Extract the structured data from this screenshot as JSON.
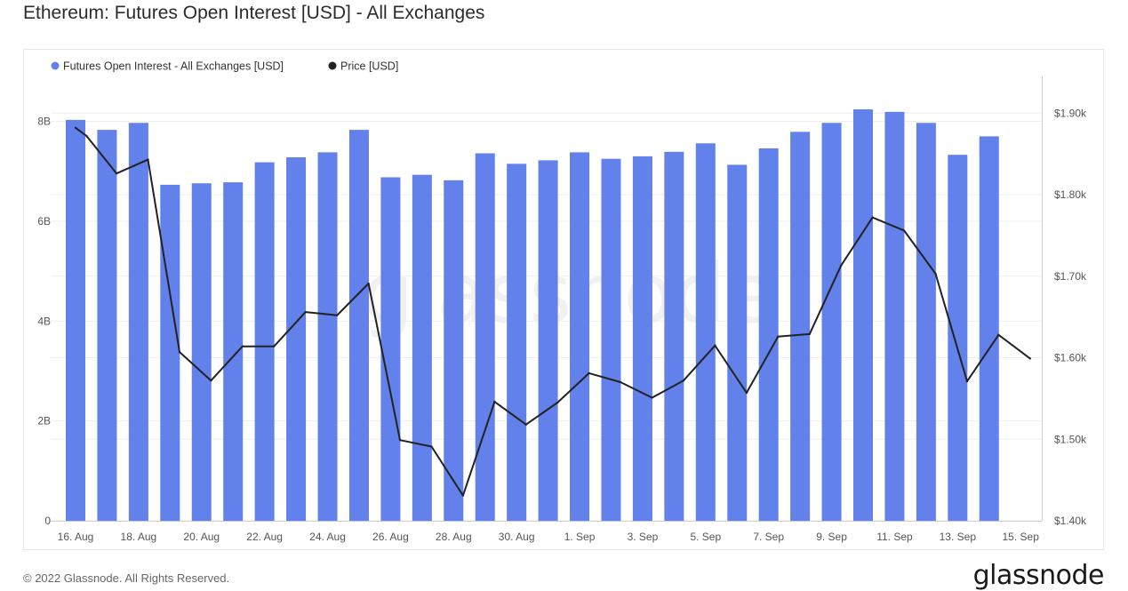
{
  "title": "Ethereum: Futures Open Interest [USD] - All Exchanges",
  "footer": {
    "copyright": "© 2022 Glassnode. All Rights Reserved.",
    "logo": "glassnode"
  },
  "watermark": "glassnode",
  "colors": {
    "bars": "#6381ea",
    "price_line": "#222222",
    "grid": "#efefef"
  },
  "chart_data": {
    "type": "bar",
    "series": [
      {
        "name": "Futures Open Interest - All Exchanges [USD]",
        "type": "bar",
        "axis": "left",
        "color": "#6381ea",
        "values": [
          8.03,
          7.83,
          7.97,
          6.73,
          6.76,
          6.78,
          7.18,
          7.28,
          7.38,
          7.83,
          6.88,
          6.93,
          6.82,
          7.36,
          7.15,
          7.22,
          7.38,
          7.25,
          7.3,
          7.39,
          7.56,
          7.13,
          7.46,
          7.79,
          7.97,
          8.24,
          8.19,
          7.97,
          7.33,
          7.7
        ]
      },
      {
        "name": "Price [USD]",
        "type": "line",
        "axis": "right",
        "color": "#222222",
        "values": [
          1882,
          1872,
          1826,
          1843,
          1607,
          1572,
          1614,
          1614,
          1656,
          1652,
          1691,
          1499,
          1491,
          1431,
          1546,
          1518,
          1545,
          1581,
          1570,
          1551,
          1572,
          1615,
          1557,
          1626,
          1629,
          1713,
          1772,
          1756,
          1703,
          1571,
          1628,
          1599
        ]
      }
    ],
    "price_x_index": [
      0,
      0.35,
      1.3,
      2.3,
      3.3,
      4.3,
      5.3,
      6.3,
      7.3,
      8.3,
      9.3,
      10.3,
      11.3,
      12.3,
      13.3,
      14.3,
      15.3,
      16.3,
      17.3,
      18.3,
      19.3,
      20.3,
      21.3,
      22.3,
      23.3,
      24.3,
      25.3,
      26.3,
      27.3,
      28.3,
      29.3,
      30.3
    ],
    "x_tick_labels": [
      "16. Aug",
      "18. Aug",
      "20. Aug",
      "22. Aug",
      "24. Aug",
      "26. Aug",
      "28. Aug",
      "30. Aug",
      "1. Sep",
      "3. Sep",
      "5. Sep",
      "7. Sep",
      "9. Sep",
      "11. Sep",
      "13. Sep",
      "15. Sep"
    ],
    "y_left": {
      "ticks": [
        0,
        2,
        4,
        6,
        8
      ],
      "tick_labels": [
        "0",
        "2B",
        "4B",
        "6B",
        "8B"
      ],
      "range": [
        0,
        8.9
      ]
    },
    "y_right": {
      "ticks": [
        1400,
        1500,
        1600,
        1700,
        1800,
        1900
      ],
      "tick_labels": [
        "$1.40k",
        "$1.50k",
        "$1.60k",
        "$1.70k",
        "$1.80k",
        "$1.90k"
      ],
      "range": [
        1400,
        1945
      ]
    },
    "legend": {
      "placement": "top-left",
      "entries": [
        {
          "label": "Futures Open Interest - All Exchanges [USD]",
          "color": "#6381ea"
        },
        {
          "label": "Price [USD]",
          "color": "#222222"
        }
      ]
    },
    "grid": true
  }
}
